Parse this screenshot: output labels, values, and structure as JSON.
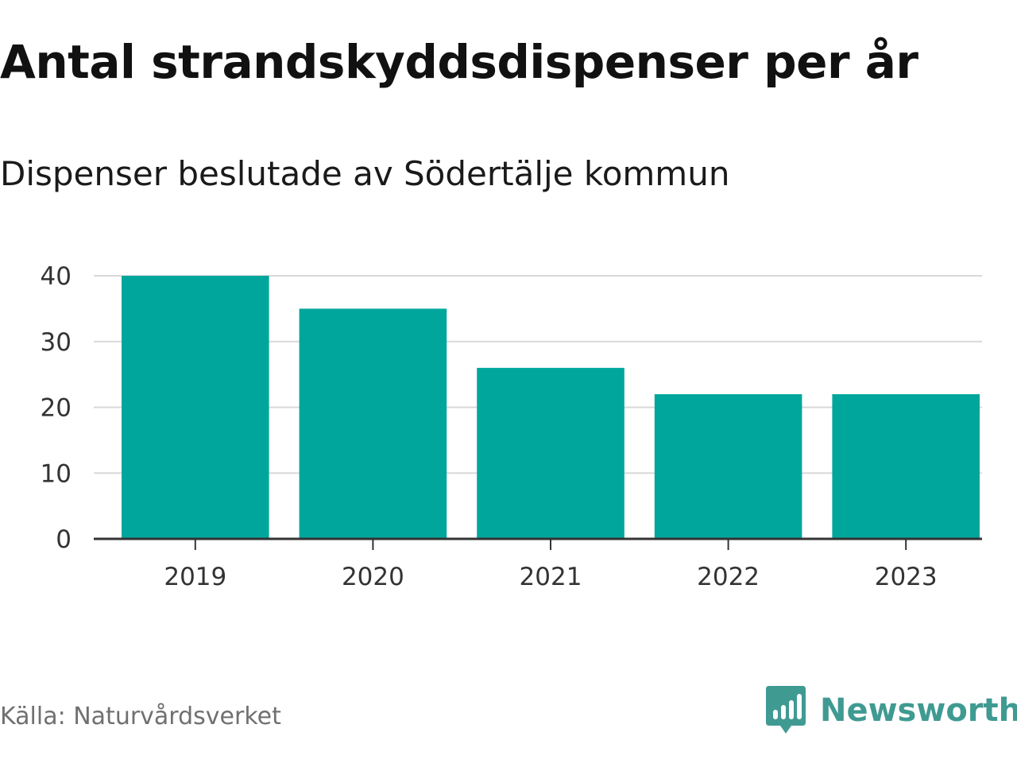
{
  "header": {
    "title": "Antal strandskyddsdispenser per år",
    "subtitle": "Dispenser beslutade av Södertälje kommun"
  },
  "footer": {
    "source": "Källa: Naturvårdsverket",
    "brand": "Newsworthy",
    "brand_icon": "bar-chart-speech-bubble-icon"
  },
  "colors": {
    "bar": "#00a69c",
    "grid": "#d9d9d9",
    "axis": "#333333",
    "brand": "#3f9a92"
  },
  "chart_data": {
    "type": "bar",
    "title": "Antal strandskyddsdispenser per år",
    "subtitle": "Dispenser beslutade av Södertälje kommun",
    "categories": [
      "2019",
      "2020",
      "2021",
      "2022",
      "2023"
    ],
    "values": [
      40,
      35,
      26,
      22,
      22
    ],
    "xlabel": "",
    "ylabel": "",
    "ylim": [
      0,
      40
    ],
    "yticks": [
      0,
      10,
      20,
      30,
      40
    ],
    "grid": true,
    "legend": "none"
  }
}
